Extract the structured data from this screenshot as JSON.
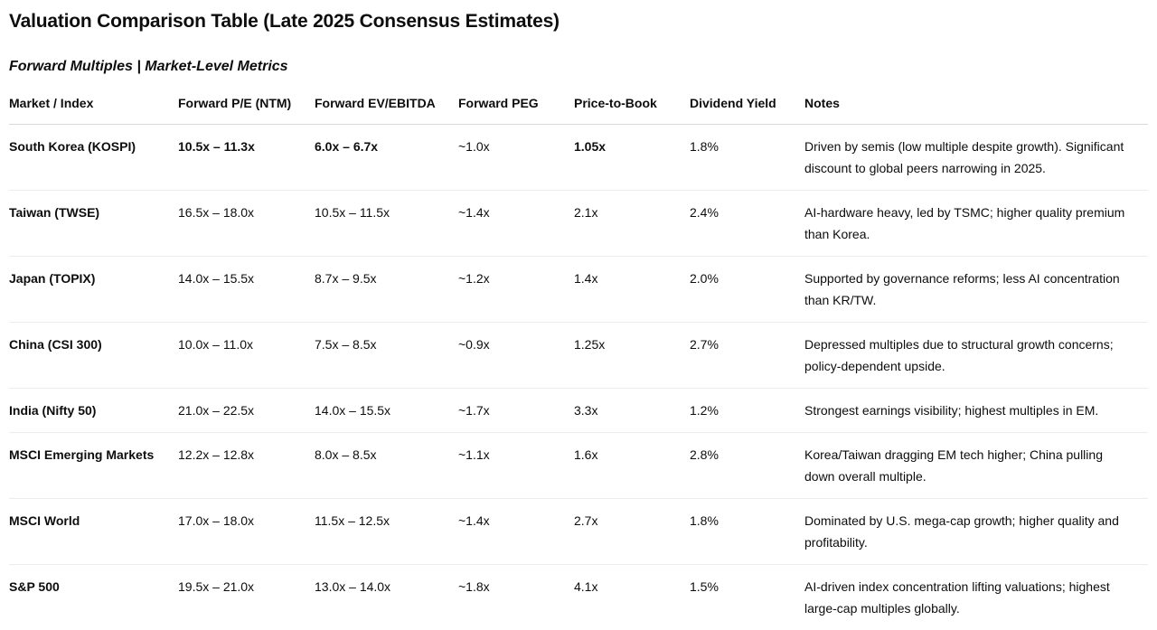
{
  "page": {
    "title": "Valuation Comparison Table (Late 2025 Consensus Estimates)",
    "subtitle": "Forward Multiples | Market-Level Metrics"
  },
  "table": {
    "columns": [
      {
        "key": "market",
        "label": "Market / Index"
      },
      {
        "key": "forward-pe",
        "label": "Forward P/E (NTM)"
      },
      {
        "key": "forward-ev-ebitda",
        "label": "Forward EV/EBITDA"
      },
      {
        "key": "forward-peg",
        "label": "Forward PEG"
      },
      {
        "key": "price-to-book",
        "label": "Price-to-Book"
      },
      {
        "key": "dividend-yield",
        "label": "Dividend Yield"
      },
      {
        "key": "notes",
        "label": "Notes"
      }
    ],
    "rows": [
      {
        "cells": [
          {
            "text": "South Korea (KOSPI)",
            "bold": true
          },
          {
            "text": "10.5x – 11.3x",
            "bold": true
          },
          {
            "text": "6.0x – 6.7x",
            "bold": true
          },
          {
            "text": "~1.0x",
            "bold": false
          },
          {
            "text": "1.05x",
            "bold": true
          },
          {
            "text": "1.8%",
            "bold": false
          },
          {
            "text": "Driven by semis (low multiple despite growth). Significant discount to global peers narrowing in 2025.",
            "bold": false
          }
        ]
      },
      {
        "cells": [
          {
            "text": "Taiwan (TWSE)",
            "bold": true
          },
          {
            "text": "16.5x – 18.0x",
            "bold": false
          },
          {
            "text": "10.5x – 11.5x",
            "bold": false
          },
          {
            "text": "~1.4x",
            "bold": false
          },
          {
            "text": "2.1x",
            "bold": false
          },
          {
            "text": "2.4%",
            "bold": false
          },
          {
            "text": "AI-hardware heavy, led by TSMC; higher quality premium than Korea.",
            "bold": false
          }
        ]
      },
      {
        "cells": [
          {
            "text": "Japan (TOPIX)",
            "bold": true
          },
          {
            "text": "14.0x – 15.5x",
            "bold": false
          },
          {
            "text": "8.7x – 9.5x",
            "bold": false
          },
          {
            "text": "~1.2x",
            "bold": false
          },
          {
            "text": "1.4x",
            "bold": false
          },
          {
            "text": "2.0%",
            "bold": false
          },
          {
            "text": "Supported by governance reforms; less AI concentration than KR/TW.",
            "bold": false
          }
        ]
      },
      {
        "cells": [
          {
            "text": "China (CSI 300)",
            "bold": true
          },
          {
            "text": "10.0x – 11.0x",
            "bold": false
          },
          {
            "text": "7.5x – 8.5x",
            "bold": false
          },
          {
            "text": "~0.9x",
            "bold": false
          },
          {
            "text": "1.25x",
            "bold": false
          },
          {
            "text": "2.7%",
            "bold": false
          },
          {
            "text": "Depressed multiples due to structural growth concerns; policy-dependent upside.",
            "bold": false
          }
        ]
      },
      {
        "cells": [
          {
            "text": "India (Nifty 50)",
            "bold": true
          },
          {
            "text": "21.0x – 22.5x",
            "bold": false
          },
          {
            "text": "14.0x – 15.5x",
            "bold": false
          },
          {
            "text": "~1.7x",
            "bold": false
          },
          {
            "text": "3.3x",
            "bold": false
          },
          {
            "text": "1.2%",
            "bold": false
          },
          {
            "text": "Strongest earnings visibility; highest multiples in EM.",
            "bold": false
          }
        ]
      },
      {
        "cells": [
          {
            "text": "MSCI Emerging Markets",
            "bold": true
          },
          {
            "text": "12.2x – 12.8x",
            "bold": false
          },
          {
            "text": "8.0x – 8.5x",
            "bold": false
          },
          {
            "text": "~1.1x",
            "bold": false
          },
          {
            "text": "1.6x",
            "bold": false
          },
          {
            "text": "2.8%",
            "bold": false
          },
          {
            "text": "Korea/Taiwan dragging EM tech higher; China pulling down overall multiple.",
            "bold": false
          }
        ]
      },
      {
        "cells": [
          {
            "text": "MSCI World",
            "bold": true
          },
          {
            "text": "17.0x – 18.0x",
            "bold": false
          },
          {
            "text": "11.5x – 12.5x",
            "bold": false
          },
          {
            "text": "~1.4x",
            "bold": false
          },
          {
            "text": "2.7x",
            "bold": false
          },
          {
            "text": "1.8%",
            "bold": false
          },
          {
            "text": "Dominated by U.S. mega-cap growth; higher quality and profitability.",
            "bold": false
          }
        ]
      },
      {
        "cells": [
          {
            "text": "S&P 500",
            "bold": true
          },
          {
            "text": "19.5x – 21.0x",
            "bold": false
          },
          {
            "text": "13.0x – 14.0x",
            "bold": false
          },
          {
            "text": "~1.8x",
            "bold": false
          },
          {
            "text": "4.1x",
            "bold": false
          },
          {
            "text": "1.5%",
            "bold": false
          },
          {
            "text": "AI-driven index concentration lifting valuations; highest large-cap multiples globally.",
            "bold": false
          }
        ]
      }
    ]
  },
  "colors": {
    "text": "#0d0d0d",
    "header_border": "#d9d9d9",
    "row_border": "#ececec",
    "background": "#ffffff"
  }
}
